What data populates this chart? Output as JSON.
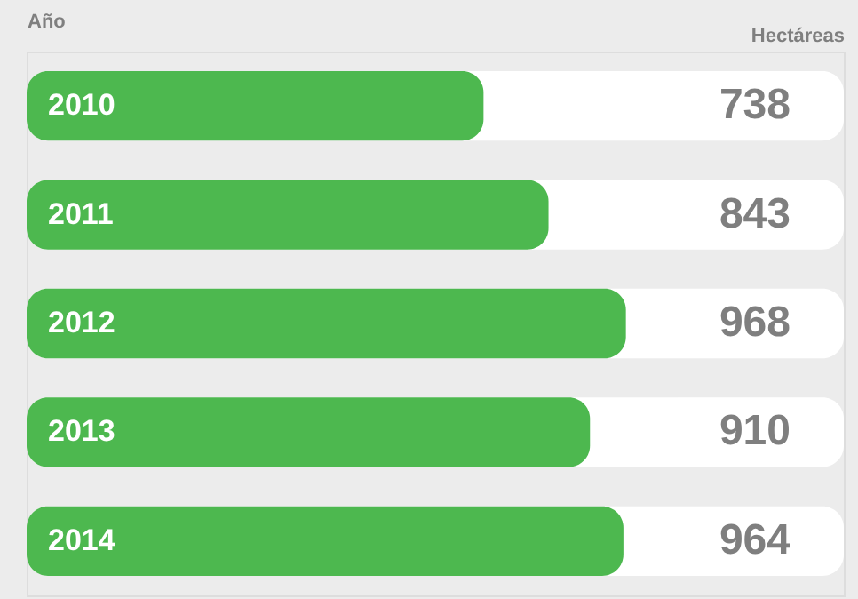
{
  "chart_data": {
    "type": "bar",
    "orientation": "horizontal",
    "xlabel": "Hectáreas",
    "ylabel": "Año",
    "categories": [
      "2010",
      "2011",
      "2012",
      "2013",
      "2014"
    ],
    "values": [
      738,
      843,
      968,
      910,
      964
    ],
    "color": "#4db84f",
    "xlim": [
      0,
      1320
    ],
    "data_labels": true
  }
}
